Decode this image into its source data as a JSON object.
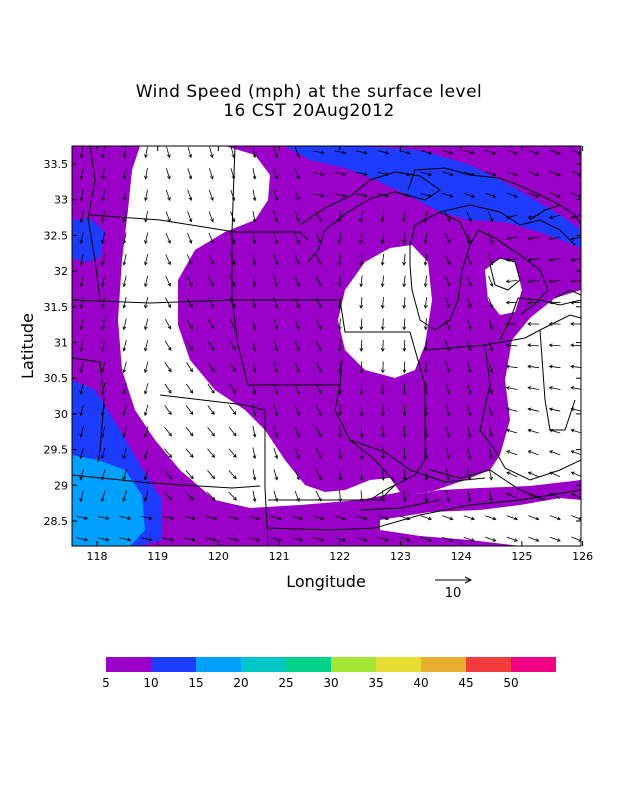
{
  "title": {
    "line1": "Wind Speed (mph) at the surface level",
    "line2": "16 CST 20Aug2012"
  },
  "axes": {
    "xlabel": "Longitude",
    "ylabel": "Latitude",
    "xticks": [
      "118",
      "119",
      "120",
      "121",
      "122",
      "123",
      "124",
      "125",
      "126"
    ],
    "yticks": [
      "33.5",
      "33",
      "32.5",
      "32",
      "31.5",
      "31",
      "30.5",
      "30",
      "29.5",
      "29",
      "28.5"
    ]
  },
  "vector_reference": {
    "label": "10"
  },
  "colorbar": {
    "labels": [
      "5",
      "10",
      "15",
      "20",
      "25",
      "30",
      "35",
      "40",
      "45",
      "50"
    ],
    "colors": [
      "#9b00c8",
      "#1e3cff",
      "#00a0ff",
      "#00c8c8",
      "#00d28c",
      "#a0e632",
      "#e6dc32",
      "#e6af2d",
      "#f03c3c",
      "#f00082"
    ]
  },
  "map_colors": {
    "land_fill": "#9b00c8",
    "calm": "#ffffff",
    "band_10_15": "#1e3cff",
    "band_15_20": "#00a0ff",
    "band_20_25": "#00c8c8",
    "border": "#000000"
  }
}
